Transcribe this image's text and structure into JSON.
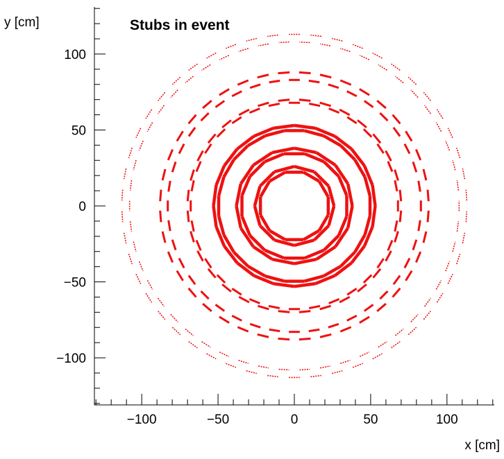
{
  "chart_data": {
    "type": "scatter",
    "title": "Stubs in event",
    "xlabel": "x [cm]",
    "ylabel": "y [cm]",
    "xlim": [
      -131,
      131
    ],
    "ylim": [
      -131,
      131
    ],
    "x_ticks": [
      -100,
      -50,
      0,
      50,
      100
    ],
    "x_tick_labels": [
      "−100",
      "−50",
      "0",
      "50",
      "100"
    ],
    "y_ticks": [
      -100,
      -50,
      0,
      50,
      100
    ],
    "y_tick_labels": [
      "−100",
      "−50",
      "0",
      "50",
      "100"
    ],
    "grid": false,
    "series": [
      {
        "marker_color": "#ee1111",
        "rings": [
          {
            "radius": 23,
            "segments": 12,
            "kind": "barrel"
          },
          {
            "radius": 26,
            "segments": 12,
            "kind": "barrel"
          },
          {
            "radius": 35,
            "segments": 16,
            "kind": "barrel"
          },
          {
            "radius": 38,
            "segments": 16,
            "kind": "barrel"
          },
          {
            "radius": 50,
            "segments": 24,
            "kind": "barrel"
          },
          {
            "radius": 53,
            "segments": 24,
            "kind": "barrel"
          },
          {
            "radius": 68,
            "segments": 32,
            "kind": "dashed"
          },
          {
            "radius": 70,
            "segments": 32,
            "kind": "dashed"
          },
          {
            "radius": 83,
            "segments": 40,
            "kind": "dashed"
          },
          {
            "radius": 88,
            "segments": 40,
            "kind": "dashed"
          },
          {
            "radius": 108,
            "segments": 50,
            "kind": "sparse"
          },
          {
            "radius": 113,
            "segments": 50,
            "kind": "sparse"
          }
        ]
      }
    ]
  }
}
